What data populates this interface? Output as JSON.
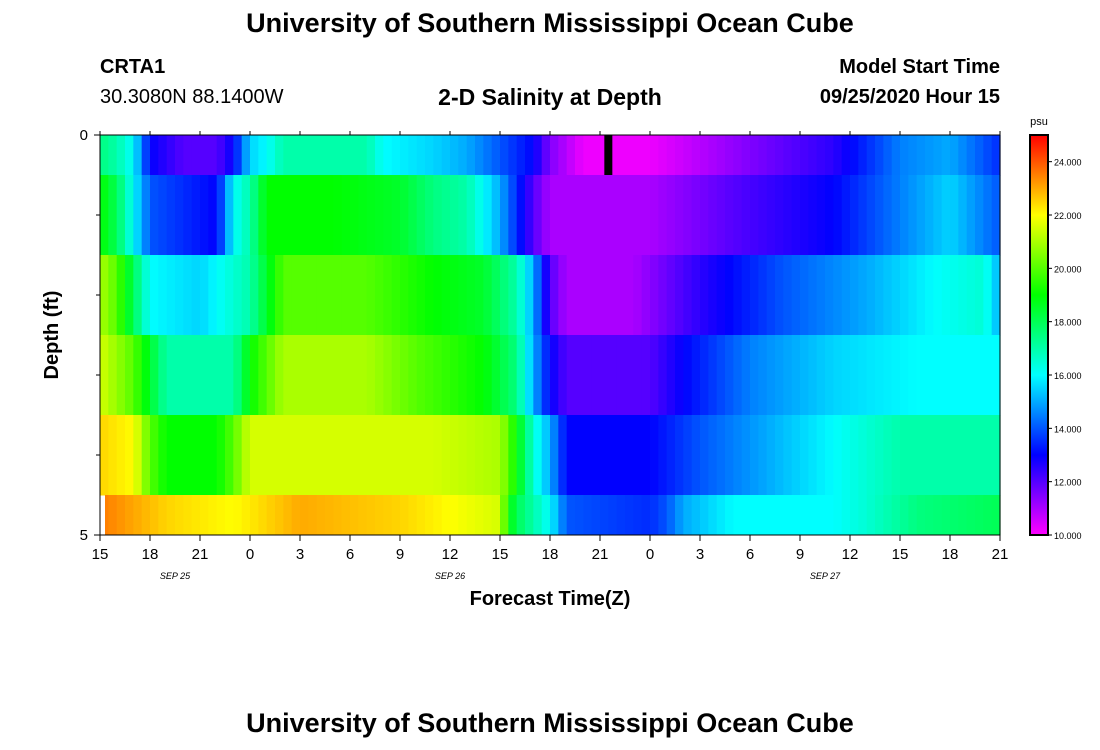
{
  "page": {
    "title": "University of Southern Mississippi Ocean Cube",
    "footer_title": "University of Southern Mississippi Ocean Cube",
    "station": "CRTA1",
    "coordinates": "30.3080N 88.1400W",
    "plot_title": "2-D Salinity at Depth",
    "model_start_label": "Model Start Time",
    "model_start_time": "09/25/2020 Hour 15"
  },
  "chart_data": {
    "type": "heatmap",
    "title": "2-D Salinity at Depth",
    "xlabel": "Forecast Time(Z)",
    "ylabel": "Depth (ft)",
    "x_range_hours": [
      0,
      54
    ],
    "ylim": [
      0,
      5
    ],
    "x_ticks": [
      {
        "hour": 0,
        "label": "15"
      },
      {
        "hour": 3,
        "label": "18"
      },
      {
        "hour": 6,
        "label": "21"
      },
      {
        "hour": 9,
        "label": "0"
      },
      {
        "hour": 12,
        "label": "3"
      },
      {
        "hour": 15,
        "label": "6"
      },
      {
        "hour": 18,
        "label": "9"
      },
      {
        "hour": 21,
        "label": "12"
      },
      {
        "hour": 24,
        "label": "15"
      },
      {
        "hour": 27,
        "label": "18"
      },
      {
        "hour": 30,
        "label": "21"
      },
      {
        "hour": 33,
        "label": "0"
      },
      {
        "hour": 36,
        "label": "3"
      },
      {
        "hour": 39,
        "label": "6"
      },
      {
        "hour": 42,
        "label": "9"
      },
      {
        "hour": 45,
        "label": "12"
      },
      {
        "hour": 48,
        "label": "15"
      },
      {
        "hour": 51,
        "label": "18"
      },
      {
        "hour": 54,
        "label": "21"
      }
    ],
    "date_labels": [
      {
        "hour": 4.5,
        "label": "SEP 25"
      },
      {
        "hour": 21,
        "label": "SEP 26"
      },
      {
        "hour": 43.5,
        "label": "SEP 27"
      }
    ],
    "y_tick_labels": [
      {
        "depth": 0,
        "label": "0"
      },
      {
        "depth": 5,
        "label": "5"
      }
    ],
    "y_minor_ticks": [
      1,
      2,
      3,
      4
    ],
    "colorbar": {
      "unit": "psu",
      "min": 10,
      "max": 25,
      "tick_values": [
        10,
        12,
        14,
        16,
        18,
        20,
        22,
        24
      ],
      "tick_labels": [
        "10.000",
        "12.000",
        "14.000",
        "16.000",
        "18.000",
        "20.000",
        "22.000",
        "24.000"
      ]
    },
    "current_time_marker_hour": 30.5,
    "layers": [
      {
        "depth_top": 0,
        "depth_bottom": 0.5,
        "points": [
          [
            0,
            17.5
          ],
          [
            1,
            17
          ],
          [
            2,
            16
          ],
          [
            3,
            13
          ],
          [
            5,
            12
          ],
          [
            7,
            12
          ],
          [
            8,
            13
          ],
          [
            9,
            15.5
          ],
          [
            10,
            16
          ],
          [
            11,
            17
          ],
          [
            16,
            17
          ],
          [
            17,
            16
          ],
          [
            20,
            15.5
          ],
          [
            22,
            15
          ],
          [
            24,
            14
          ],
          [
            26,
            13
          ],
          [
            27,
            11.5
          ],
          [
            29,
            10.2
          ],
          [
            33,
            10.2
          ],
          [
            39,
            11.5
          ],
          [
            44,
            12.5
          ],
          [
            48,
            14.5
          ],
          [
            51,
            15
          ],
          [
            54,
            13.5
          ]
        ]
      },
      {
        "depth_top": 0.5,
        "depth_bottom": 1.5,
        "points": [
          [
            0,
            19
          ],
          [
            1,
            18
          ],
          [
            2,
            16
          ],
          [
            3,
            14
          ],
          [
            7,
            13
          ],
          [
            8,
            16
          ],
          [
            9,
            17
          ],
          [
            10,
            19
          ],
          [
            14,
            19
          ],
          [
            18,
            18.5
          ],
          [
            20,
            17.5
          ],
          [
            22,
            17
          ],
          [
            24,
            15
          ],
          [
            25,
            13.5
          ],
          [
            26,
            12
          ],
          [
            27,
            11
          ],
          [
            33,
            11
          ],
          [
            38,
            12
          ],
          [
            44,
            13
          ],
          [
            48,
            14.5
          ],
          [
            51,
            15.5
          ],
          [
            54,
            14
          ]
        ]
      },
      {
        "depth_top": 1.5,
        "depth_bottom": 2.5,
        "points": [
          [
            0,
            21
          ],
          [
            1,
            20
          ],
          [
            2,
            18
          ],
          [
            3,
            16
          ],
          [
            6,
            15.5
          ],
          [
            9,
            17
          ],
          [
            11,
            20
          ],
          [
            16,
            20
          ],
          [
            20,
            19
          ],
          [
            23,
            18.5
          ],
          [
            25,
            17
          ],
          [
            26,
            15
          ],
          [
            27,
            12
          ],
          [
            28,
            11
          ],
          [
            32,
            11
          ],
          [
            36,
            12.5
          ],
          [
            41,
            14
          ],
          [
            46,
            15
          ],
          [
            50,
            16
          ],
          [
            53,
            16.5
          ],
          [
            54,
            15
          ]
        ]
      },
      {
        "depth_top": 2.5,
        "depth_bottom": 3.5,
        "points": [
          [
            0,
            21.5
          ],
          [
            2,
            20
          ],
          [
            3,
            18.5
          ],
          [
            4,
            17
          ],
          [
            8,
            17
          ],
          [
            9,
            19
          ],
          [
            11,
            21
          ],
          [
            16,
            21
          ],
          [
            19,
            20
          ],
          [
            23,
            19
          ],
          [
            25,
            17.5
          ],
          [
            26,
            15
          ],
          [
            27,
            13
          ],
          [
            28,
            12
          ],
          [
            33,
            12
          ],
          [
            35,
            13
          ],
          [
            39,
            14.5
          ],
          [
            44,
            15.5
          ],
          [
            49,
            16
          ],
          [
            54,
            16
          ]
        ]
      },
      {
        "depth_top": 3.5,
        "depth_bottom": 4.5,
        "points": [
          [
            0,
            22.5
          ],
          [
            2,
            22
          ],
          [
            3,
            20
          ],
          [
            4,
            19
          ],
          [
            7,
            19
          ],
          [
            8,
            20
          ],
          [
            9,
            21.5
          ],
          [
            14,
            21.5
          ],
          [
            20,
            21.5
          ],
          [
            24,
            21
          ],
          [
            25,
            19
          ],
          [
            26,
            16.5
          ],
          [
            27,
            15
          ],
          [
            28,
            13
          ],
          [
            33,
            13
          ],
          [
            36,
            14
          ],
          [
            40,
            15
          ],
          [
            44,
            16
          ],
          [
            48,
            17
          ],
          [
            54,
            17
          ]
        ]
      },
      {
        "depth_top": 4.5,
        "depth_bottom": 5,
        "points": [
          [
            0.3,
            23.5
          ],
          [
            4,
            22.5
          ],
          [
            8,
            22
          ],
          [
            12,
            23
          ],
          [
            18,
            22.5
          ],
          [
            24,
            21.5
          ],
          [
            24.5,
            19
          ],
          [
            25,
            18
          ],
          [
            26,
            17
          ],
          [
            27,
            16
          ],
          [
            28,
            14
          ],
          [
            33,
            13.5
          ],
          [
            34,
            14
          ],
          [
            35,
            15
          ],
          [
            38,
            16
          ],
          [
            44,
            16
          ],
          [
            46,
            16.5
          ],
          [
            49,
            17.5
          ],
          [
            54,
            18
          ]
        ]
      }
    ]
  }
}
